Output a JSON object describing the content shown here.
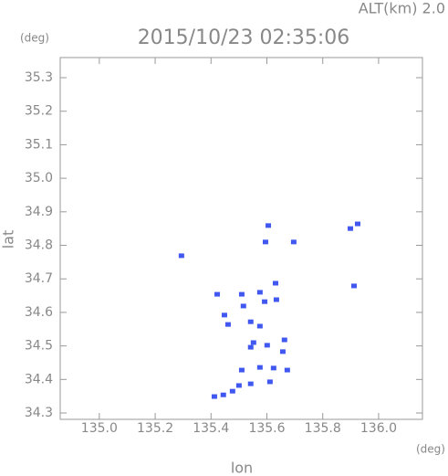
{
  "chart_data": {
    "type": "scatter",
    "title": "2015/10/23 02:35:06",
    "subtitle": "ALT(km) 2.0",
    "y_unit": "(deg)",
    "x_unit": "(deg)",
    "x_label": "lon",
    "y_label": "lat",
    "color": "#4058f0",
    "x": [
      135.294,
      135.605,
      135.899,
      135.925,
      135.595,
      135.912,
      135.631,
      135.51,
      135.516,
      135.422,
      135.575,
      135.592,
      135.634,
      135.542,
      135.575,
      135.552,
      135.542,
      135.601,
      135.657,
      135.663,
      135.51,
      135.575,
      135.624,
      135.673,
      135.611,
      135.542,
      135.5,
      135.477,
      135.444,
      135.412,
      135.461,
      135.448,
      135.696
    ],
    "y": [
      34.769,
      34.859,
      34.85,
      34.864,
      34.81,
      34.679,
      34.687,
      34.654,
      34.619,
      34.654,
      34.66,
      34.632,
      34.638,
      34.572,
      34.559,
      34.51,
      34.496,
      34.502,
      34.483,
      34.518,
      34.428,
      34.436,
      34.434,
      34.428,
      34.393,
      34.387,
      34.382,
      34.365,
      34.354,
      34.349,
      34.564,
      34.592,
      34.81
    ],
    "xlim": [
      134.86,
      136.157
    ],
    "ylim": [
      34.281,
      35.36
    ],
    "xticks": [
      {
        "value": 135,
        "label": "135.0"
      },
      135.2,
      135.4,
      135.6,
      135.8,
      {
        "value": 136,
        "label": "136.0"
      }
    ],
    "yticks": [
      34.3,
      34.4,
      34.5,
      34.6,
      34.7,
      34.8,
      34.9,
      {
        "value": 35,
        "label": "35.0"
      },
      35.1,
      35.2,
      35.3
    ]
  }
}
